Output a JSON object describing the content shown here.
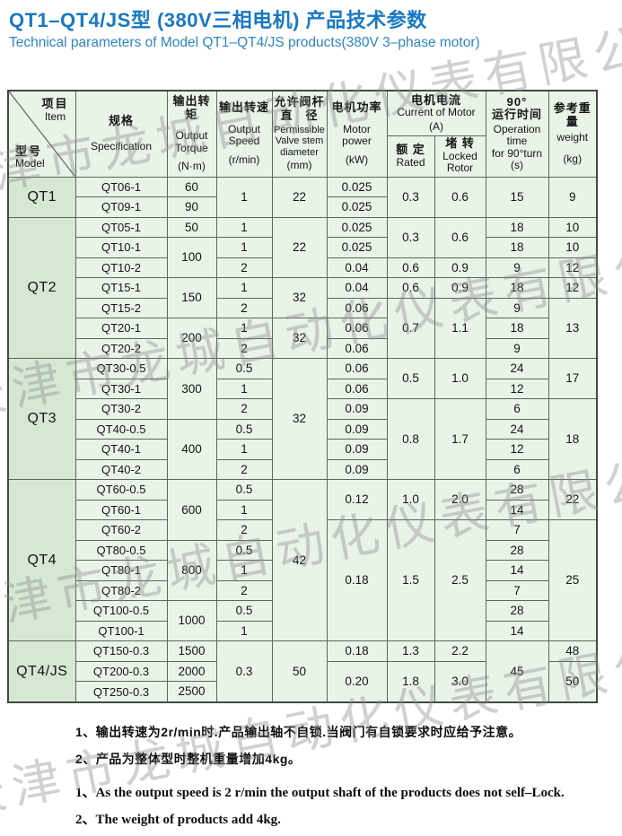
{
  "page": {
    "title_cn": "QT1–QT4/JS型 (380V三相电机) 产品技术参数",
    "subtitle_en": "Technical parameters of Model QT1–QT4/JS products(380V 3–phase motor)"
  },
  "watermark": {
    "text": "天津市龙城自动化仪表有限公司",
    "color": "#8d8d8d"
  },
  "colors": {
    "title_blue": "#1878c2",
    "table_cell_bg": "#e9f3e8",
    "model_col_bg": "#d6e8d4",
    "header_bg": "#dfeedd",
    "grid_line": "#5c665c"
  },
  "table": {
    "header": {
      "corner": {
        "item_cn": "项目",
        "item_en": "Item",
        "model_cn": "型号",
        "model_en": "Model"
      },
      "spec": {
        "cn": "规格",
        "en": "Specification"
      },
      "torque": {
        "cn": "输出转矩",
        "en1": "Output",
        "en2": "Torque",
        "unit": "(N·m)"
      },
      "speed": {
        "cn": "输出转速",
        "en1": "Output",
        "en2": "Speed",
        "unit": "(r/min)"
      },
      "valve": {
        "cn": "允许阀杆",
        "cn2": "直　径",
        "en1": "Permissible",
        "en2": "Valve stem",
        "en3": "diameter",
        "unit": "(mm)"
      },
      "power": {
        "cn": "电机功率",
        "en1": "Motor",
        "en2": "power",
        "unit": "(kW)"
      },
      "current_group": {
        "cn": "电机电流",
        "en": "Current of Motor",
        "unit": "(A)"
      },
      "rated": {
        "cn": "额 定",
        "en": "Rated"
      },
      "locked": {
        "cn": "堵 转",
        "en1": "Locked",
        "en2": "Rotor"
      },
      "time": {
        "deg": "90°",
        "cn": "运行时间",
        "en1": "Operation",
        "en2": "time",
        "en3": "for 90°turn",
        "unit": "(s)"
      },
      "weight": {
        "cn": "参考重量",
        "en": "weight",
        "unit": "(kg)"
      }
    },
    "rows": [
      [
        {
          "t": "QT1",
          "rs": 2,
          "m": 1
        },
        {
          "t": "QT06-1",
          "s": 1
        },
        {
          "t": "60"
        },
        {
          "t": "1",
          "rs": 2
        },
        {
          "t": "22",
          "rs": 2
        },
        {
          "t": "0.025"
        },
        {
          "t": "0.3",
          "rs": 2
        },
        {
          "t": "0.6",
          "rs": 2
        },
        {
          "t": "15",
          "rs": 2
        },
        {
          "t": "9",
          "rs": 2
        }
      ],
      [
        {
          "t": "QT09-1",
          "s": 1
        },
        {
          "t": "90"
        },
        {
          "t": "0.025"
        }
      ],
      [
        {
          "t": "QT2",
          "rs": 7,
          "m": 1
        },
        {
          "t": "QT05-1",
          "s": 1
        },
        {
          "t": "50"
        },
        {
          "t": "1"
        },
        {
          "t": "22",
          "rs": 3
        },
        {
          "t": "0.025"
        },
        {
          "t": "0.3",
          "rs": 2
        },
        {
          "t": "0.6",
          "rs": 2
        },
        {
          "t": "18"
        },
        {
          "t": "10"
        }
      ],
      [
        {
          "t": "QT10-1",
          "s": 1
        },
        {
          "t": "100",
          "rs": 2
        },
        {
          "t": "1"
        },
        {
          "t": "0.025"
        },
        {
          "t": "18"
        },
        {
          "t": "10"
        }
      ],
      [
        {
          "t": "QT10-2",
          "s": 1
        },
        {
          "t": "2"
        },
        {
          "t": "0.04"
        },
        {
          "t": "0.6"
        },
        {
          "t": "0.9"
        },
        {
          "t": "9"
        },
        {
          "t": "12"
        }
      ],
      [
        {
          "t": "QT15-1",
          "s": 1
        },
        {
          "t": "150",
          "rs": 2
        },
        {
          "t": "1"
        },
        {
          "t": "32",
          "rs": 2
        },
        {
          "t": "0.04"
        },
        {
          "t": "0.6"
        },
        {
          "t": "0.9"
        },
        {
          "t": "18"
        },
        {
          "t": "12"
        }
      ],
      [
        {
          "t": "QT15-2",
          "s": 1
        },
        {
          "t": "2"
        },
        {
          "t": "0.06"
        },
        {
          "t": "0.7",
          "rs": 3
        },
        {
          "t": "1.1",
          "rs": 3
        },
        {
          "t": "9"
        },
        {
          "t": "13",
          "rs": 3
        }
      ],
      [
        {
          "t": "QT20-1",
          "s": 1
        },
        {
          "t": "200",
          "rs": 2
        },
        {
          "t": "1"
        },
        {
          "t": "32",
          "rs": 2
        },
        {
          "t": "0.06"
        },
        {
          "t": "18"
        }
      ],
      [
        {
          "t": "QT20-2",
          "s": 1
        },
        {
          "t": "2"
        },
        {
          "t": "0.06"
        },
        {
          "t": "9"
        }
      ],
      [
        {
          "t": "QT3",
          "rs": 6,
          "m": 1
        },
        {
          "t": "QT30-0.5",
          "s": 1
        },
        {
          "t": "300",
          "rs": 3
        },
        {
          "t": "0.5"
        },
        {
          "t": "32",
          "rs": 6
        },
        {
          "t": "0.06"
        },
        {
          "t": "0.5",
          "rs": 2
        },
        {
          "t": "1.0",
          "rs": 2
        },
        {
          "t": "24"
        },
        {
          "t": "17",
          "rs": 2
        }
      ],
      [
        {
          "t": "QT30-1",
          "s": 1
        },
        {
          "t": "1"
        },
        {
          "t": "0.06"
        },
        {
          "t": "12"
        }
      ],
      [
        {
          "t": "QT30-2",
          "s": 1
        },
        {
          "t": "2"
        },
        {
          "t": "0.09"
        },
        {
          "t": "0.8",
          "rs": 4
        },
        {
          "t": "1.7",
          "rs": 4
        },
        {
          "t": "6"
        },
        {
          "t": "18",
          "rs": 4
        }
      ],
      [
        {
          "t": "QT40-0.5",
          "s": 1
        },
        {
          "t": "400",
          "rs": 3
        },
        {
          "t": "0.5"
        },
        {
          "t": "0.09"
        },
        {
          "t": "24"
        }
      ],
      [
        {
          "t": "QT40-1",
          "s": 1
        },
        {
          "t": "1"
        },
        {
          "t": "0.09"
        },
        {
          "t": "12"
        }
      ],
      [
        {
          "t": "QT40-2",
          "s": 1
        },
        {
          "t": "2"
        },
        {
          "t": "0.09"
        },
        {
          "t": "6"
        }
      ],
      [
        {
          "t": "QT4",
          "rs": 8,
          "m": 1
        },
        {
          "t": "QT60-0.5",
          "s": 1
        },
        {
          "t": "600",
          "rs": 3
        },
        {
          "t": "0.5"
        },
        {
          "t": "42",
          "rs": 8
        },
        {
          "t": "0.12",
          "rs": 2
        },
        {
          "t": "1.0",
          "rs": 2
        },
        {
          "t": "2.0",
          "rs": 2
        },
        {
          "t": "28"
        },
        {
          "t": "22",
          "rs": 2
        }
      ],
      [
        {
          "t": "QT60-1",
          "s": 1
        },
        {
          "t": "1"
        },
        {
          "t": "14"
        }
      ],
      [
        {
          "t": "QT60-2",
          "s": 1
        },
        {
          "t": "2"
        },
        {
          "t": "0.18",
          "rs": 6
        },
        {
          "t": "1.5",
          "rs": 6
        },
        {
          "t": "2.5",
          "rs": 6
        },
        {
          "t": "7"
        },
        {
          "t": "25",
          "rs": 6
        }
      ],
      [
        {
          "t": "QT80-0.5",
          "s": 1
        },
        {
          "t": "800",
          "rs": 3
        },
        {
          "t": "0.5"
        },
        {
          "t": "28"
        }
      ],
      [
        {
          "t": "QT80-1",
          "s": 1
        },
        {
          "t": "1"
        },
        {
          "t": "14"
        }
      ],
      [
        {
          "t": "QT80-2",
          "s": 1
        },
        {
          "t": "2"
        },
        {
          "t": "7"
        }
      ],
      [
        {
          "t": "QT100-0.5",
          "s": 1
        },
        {
          "t": "1000",
          "rs": 2
        },
        {
          "t": "0.5"
        },
        {
          "t": "28"
        }
      ],
      [
        {
          "t": "QT100-1",
          "s": 1
        },
        {
          "t": "1"
        },
        {
          "t": "14"
        }
      ],
      [
        {
          "t": "QT4/JS",
          "rs": 3,
          "m": 1
        },
        {
          "t": "QT150-0.3",
          "s": 1
        },
        {
          "t": "1500"
        },
        {
          "t": "0.3",
          "rs": 3
        },
        {
          "t": "50",
          "rs": 3
        },
        {
          "t": "0.18"
        },
        {
          "t": "1.3"
        },
        {
          "t": "2.2"
        },
        {
          "t": "45",
          "rs": 3
        },
        {
          "t": "48"
        }
      ],
      [
        {
          "t": "QT200-0.3",
          "s": 1
        },
        {
          "t": "2000"
        },
        {
          "t": "0.20",
          "rs": 2
        },
        {
          "t": "1.8",
          "rs": 2
        },
        {
          "t": "3.0",
          "rs": 2
        },
        {
          "t": "50",
          "rs": 2
        }
      ],
      [
        {
          "t": "QT250-0.3",
          "s": 1
        },
        {
          "t": "2500"
        }
      ]
    ]
  },
  "notes": {
    "cn1": "1、输出转速为2r/min时.产品输出轴不自锁.当阀门有自锁要求时应给予注意。",
    "cn2": "2、产品为整体型时整机重量增加4kg。",
    "en1": "1、As the output speed is 2 r/min the output shaft of the products does not  self–Lock.",
    "en2": "2、The weight of products add 4kg."
  }
}
